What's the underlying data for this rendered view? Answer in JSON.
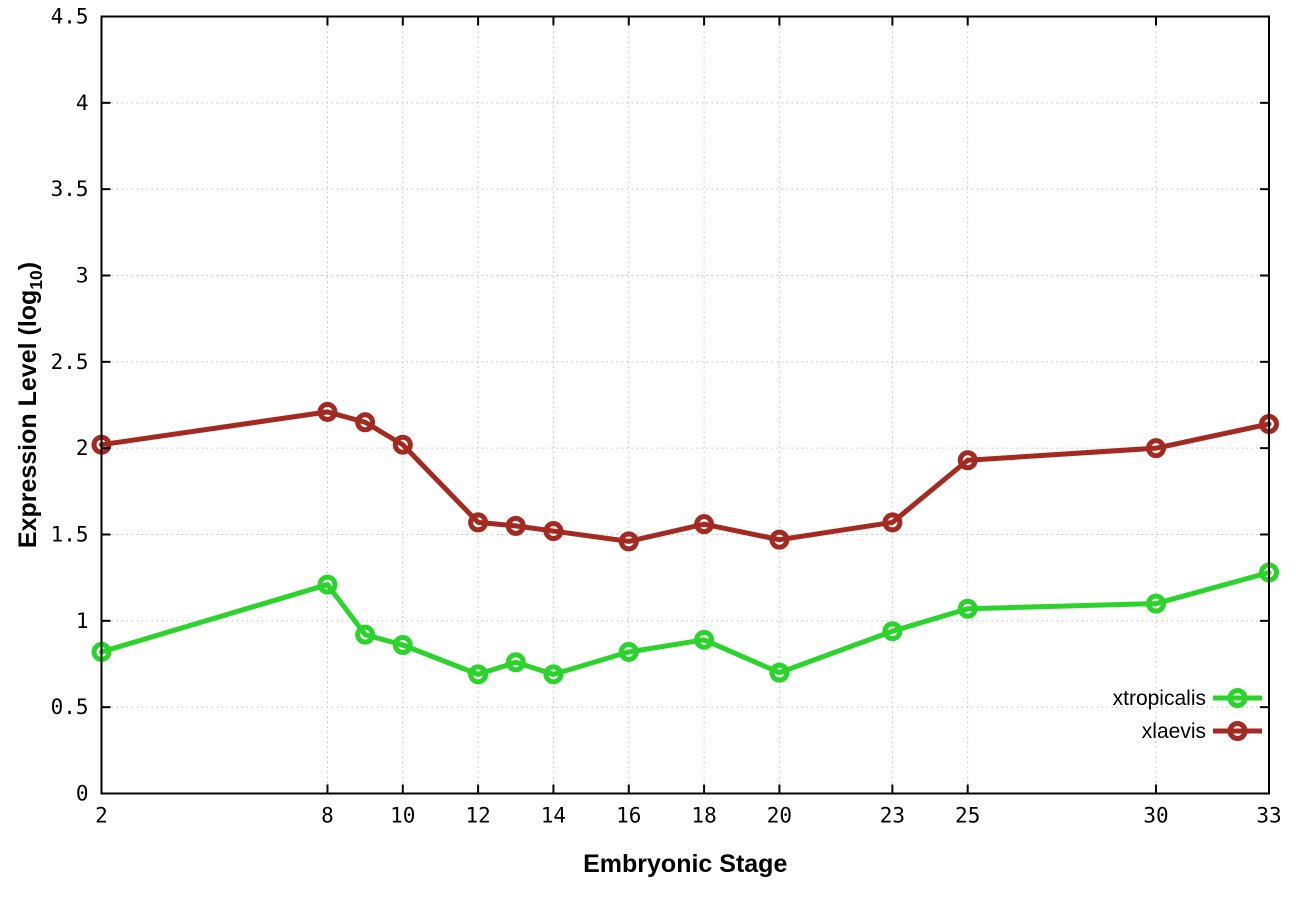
{
  "chart_data": {
    "type": "line",
    "title": "",
    "xlabel": "Embryonic Stage",
    "ylabel": {
      "text": "Expression Level (log",
      "sub": "10",
      "suffix": ")"
    },
    "x": [
      2,
      8,
      9,
      10,
      12,
      13,
      14,
      16,
      18,
      20,
      23,
      25,
      30,
      33
    ],
    "xticks": [
      2,
      8,
      10,
      12,
      14,
      16,
      18,
      20,
      23,
      25,
      30,
      33
    ],
    "yticks": [
      0,
      0.5,
      1,
      1.5,
      2,
      2.5,
      3,
      3.5,
      4,
      4.5
    ],
    "xlim": [
      2,
      33
    ],
    "ylim": [
      0,
      4.5
    ],
    "grid": true,
    "legend_position": "inside-bottom-right",
    "series": [
      {
        "name": "xtropicalis",
        "color": "#2bd42b",
        "values": [
          0.82,
          1.21,
          0.92,
          0.86,
          0.69,
          0.76,
          0.69,
          0.82,
          0.89,
          0.7,
          0.94,
          1.07,
          1.1,
          1.28
        ]
      },
      {
        "name": "xlaevis",
        "color": "#a42a21",
        "values": [
          2.02,
          2.21,
          2.15,
          2.02,
          1.57,
          1.55,
          1.52,
          1.46,
          1.56,
          1.47,
          1.57,
          1.93,
          2.0,
          2.14
        ]
      }
    ],
    "colors": {
      "axis": "#000000",
      "grid": "#c0c0c0",
      "background": "#ffffff"
    }
  }
}
